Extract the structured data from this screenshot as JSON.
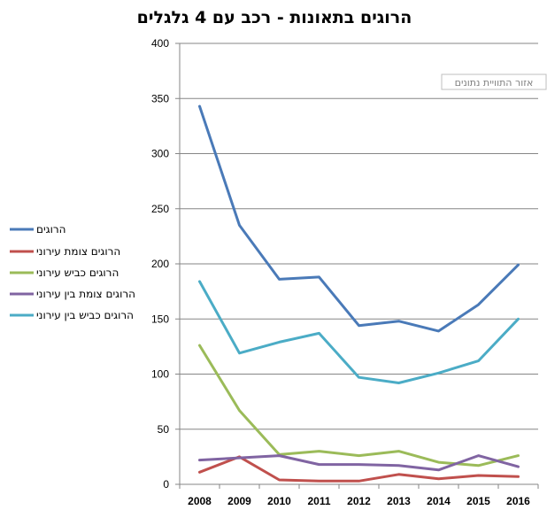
{
  "chart_data": {
    "type": "line",
    "title": "הרוגים בתאונות - רכב עם 4 גלגלים",
    "plot_area_label": "אזור התוויית נתונים",
    "categories": [
      "2008",
      "2009",
      "2010",
      "2011",
      "2012",
      "2013",
      "2014",
      "2015",
      "2016"
    ],
    "ylim": [
      0,
      400
    ],
    "yticks": [
      "0",
      "50",
      "100",
      "150",
      "200",
      "250",
      "300",
      "350",
      "400"
    ],
    "grid": true,
    "legend_position": "left",
    "series": [
      {
        "name": "הרוגים",
        "color": "#4a7ab8",
        "values": [
          343,
          235,
          186,
          188,
          144,
          148,
          139,
          163,
          199
        ]
      },
      {
        "name": "הרוגים  צומת עירוני",
        "color": "#c0504d",
        "values": [
          11,
          25,
          4,
          3,
          3,
          9,
          5,
          8,
          7
        ]
      },
      {
        "name": "הרוגים כביש עירוני",
        "color": "#9bbb59",
        "values": [
          126,
          67,
          27,
          30,
          26,
          30,
          20,
          17,
          26
        ]
      },
      {
        "name": "הרוגים צומת בין עירוני",
        "color": "#8064a2",
        "values": [
          22,
          24,
          26,
          18,
          18,
          17,
          13,
          26,
          16
        ]
      },
      {
        "name": "הרוגים כביש בין עירוני",
        "color": "#4bacc6",
        "values": [
          184,
          119,
          129,
          137,
          97,
          92,
          101,
          112,
          150
        ]
      }
    ]
  }
}
